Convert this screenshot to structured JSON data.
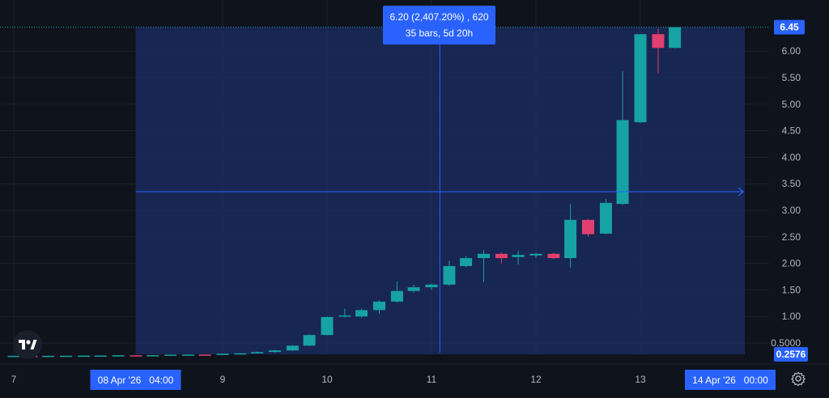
{
  "measure": {
    "line1": "6.20 (2,407.20%) , 620",
    "line2": "35 bars, 5d 20h"
  },
  "x_axis": {
    "ticks": [
      {
        "label": "7",
        "day": 7
      },
      {
        "label": "9",
        "day": 9
      },
      {
        "label": "10",
        "day": 10
      },
      {
        "label": "11",
        "day": 11
      },
      {
        "label": "12",
        "day": 12
      },
      {
        "label": "13",
        "day": 13
      }
    ],
    "range_start_label": "08 Apr '26   04:00",
    "range_end_label": "14 Apr '26   00:00"
  },
  "y_axis": {
    "tick_labels": [
      "6.00",
      "5.50",
      "5.00",
      "4.50",
      "4.00",
      "3.50",
      "3.00",
      "2.50",
      "2.00",
      "1.50",
      "1.00",
      "0.5000"
    ],
    "top_badge": "6.45",
    "bottom_badge": "0.2576"
  },
  "colors": {
    "up": "#17a2a3",
    "down": "#e0406e",
    "measure_fill": "#1a2a5c",
    "accent": "#2962ff",
    "background": "#0f131c"
  },
  "icons": {
    "logo": "tradingview-logo",
    "settings": "settings-icon"
  },
  "chart_data": {
    "type": "candlestick",
    "x_unit": "day of April 2026",
    "y_range": [
      0.2,
      6.5
    ],
    "measure_range_days": [
      8.1667,
      14.0
    ],
    "crosshair": {
      "day": 11.08,
      "price": 3.35
    },
    "candles": [
      {
        "day": 7.0,
        "open": 0.255,
        "high": 0.26,
        "low": 0.25,
        "close": 0.258
      },
      {
        "day": 7.17,
        "open": 0.258,
        "high": 0.262,
        "low": 0.25,
        "close": 0.252
      },
      {
        "day": 7.33,
        "open": 0.252,
        "high": 0.262,
        "low": 0.25,
        "close": 0.258
      },
      {
        "day": 7.5,
        "open": 0.258,
        "high": 0.262,
        "low": 0.252,
        "close": 0.26
      },
      {
        "day": 7.67,
        "open": 0.26,
        "high": 0.264,
        "low": 0.255,
        "close": 0.262
      },
      {
        "day": 7.83,
        "open": 0.262,
        "high": 0.266,
        "low": 0.258,
        "close": 0.264
      },
      {
        "day": 8.0,
        "open": 0.264,
        "high": 0.27,
        "low": 0.26,
        "close": 0.268
      },
      {
        "day": 8.17,
        "open": 0.268,
        "high": 0.27,
        "low": 0.26,
        "close": 0.262
      },
      {
        "day": 8.33,
        "open": 0.262,
        "high": 0.272,
        "low": 0.26,
        "close": 0.27
      },
      {
        "day": 8.5,
        "open": 0.27,
        "high": 0.282,
        "low": 0.268,
        "close": 0.28
      },
      {
        "day": 8.67,
        "open": 0.28,
        "high": 0.285,
        "low": 0.272,
        "close": 0.282
      },
      {
        "day": 8.83,
        "open": 0.282,
        "high": 0.286,
        "low": 0.27,
        "close": 0.274
      },
      {
        "day": 9.0,
        "open": 0.274,
        "high": 0.3,
        "low": 0.27,
        "close": 0.298
      },
      {
        "day": 9.17,
        "open": 0.298,
        "high": 0.31,
        "low": 0.29,
        "close": 0.305
      },
      {
        "day": 9.33,
        "open": 0.305,
        "high": 0.34,
        "low": 0.3,
        "close": 0.33
      },
      {
        "day": 9.5,
        "open": 0.33,
        "high": 0.37,
        "low": 0.32,
        "close": 0.36
      },
      {
        "day": 9.67,
        "open": 0.36,
        "high": 0.46,
        "low": 0.35,
        "close": 0.45
      },
      {
        "day": 9.83,
        "open": 0.45,
        "high": 0.66,
        "low": 0.44,
        "close": 0.65
      },
      {
        "day": 10.0,
        "open": 0.65,
        "high": 1.0,
        "low": 0.64,
        "close": 0.99
      },
      {
        "day": 10.17,
        "open": 1.0,
        "high": 1.15,
        "low": 0.98,
        "close": 1.02
      },
      {
        "day": 10.33,
        "open": 1.0,
        "high": 1.15,
        "low": 0.97,
        "close": 1.12
      },
      {
        "day": 10.5,
        "open": 1.12,
        "high": 1.3,
        "low": 1.05,
        "close": 1.28
      },
      {
        "day": 10.67,
        "open": 1.28,
        "high": 1.66,
        "low": 1.26,
        "close": 1.48
      },
      {
        "day": 10.83,
        "open": 1.48,
        "high": 1.6,
        "low": 1.45,
        "close": 1.55
      },
      {
        "day": 11.0,
        "open": 1.55,
        "high": 1.62,
        "low": 1.5,
        "close": 1.6
      },
      {
        "day": 11.17,
        "open": 1.6,
        "high": 2.05,
        "low": 1.58,
        "close": 1.95
      },
      {
        "day": 11.33,
        "open": 1.95,
        "high": 2.14,
        "low": 1.93,
        "close": 2.1
      },
      {
        "day": 11.5,
        "open": 2.1,
        "high": 2.25,
        "low": 1.65,
        "close": 2.18
      },
      {
        "day": 11.67,
        "open": 2.18,
        "high": 2.2,
        "low": 2.0,
        "close": 2.1
      },
      {
        "day": 11.83,
        "open": 2.12,
        "high": 2.24,
        "low": 1.98,
        "close": 2.16
      },
      {
        "day": 12.0,
        "open": 2.15,
        "high": 2.2,
        "low": 2.1,
        "close": 2.18
      },
      {
        "day": 12.17,
        "open": 2.18,
        "high": 2.2,
        "low": 2.08,
        "close": 2.1
      },
      {
        "day": 12.33,
        "open": 2.1,
        "high": 3.12,
        "low": 1.92,
        "close": 2.82
      },
      {
        "day": 12.5,
        "open": 2.82,
        "high": 2.84,
        "low": 2.5,
        "close": 2.55
      },
      {
        "day": 12.67,
        "open": 2.56,
        "high": 3.22,
        "low": 2.55,
        "close": 3.14
      },
      {
        "day": 12.83,
        "open": 3.12,
        "high": 5.62,
        "low": 3.1,
        "close": 4.7
      },
      {
        "day": 13.0,
        "open": 4.66,
        "high": 6.32,
        "low": 4.64,
        "close": 6.32
      },
      {
        "day": 13.17,
        "open": 6.32,
        "high": 6.42,
        "low": 5.58,
        "close": 6.06
      },
      {
        "day": 13.33,
        "open": 6.06,
        "high": 6.45,
        "low": 6.05,
        "close": 6.45
      }
    ]
  }
}
